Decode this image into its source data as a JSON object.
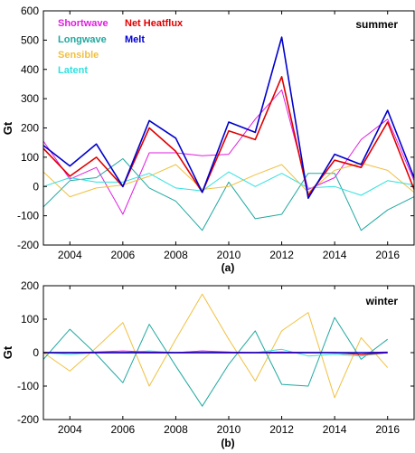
{
  "chart_data": [
    {
      "type": "line",
      "panel_label": "(a)",
      "annotation": "summer",
      "ylabel": "Gt",
      "xlim": [
        2003,
        2017
      ],
      "ylim": [
        -200,
        600
      ],
      "xticks": [
        "2004",
        "2006",
        "2008",
        "2010",
        "2012",
        "2014",
        "2016"
      ],
      "yticks": [
        "-200",
        "-100",
        "0",
        "100",
        "200",
        "300",
        "400",
        "500",
        "600"
      ],
      "x": [
        2003,
        2004,
        2005,
        2006,
        2007,
        2008,
        2009,
        2010,
        2011,
        2012,
        2013,
        2014,
        2015,
        2016,
        2017
      ],
      "legend": [
        {
          "label": "Shortwave",
          "color": "#e01ee0"
        },
        {
          "label": "Net Heatflux",
          "color": "#e00000"
        },
        {
          "label": "Longwave",
          "color": "#20a8a0"
        },
        {
          "label": "Melt",
          "color": "#0000cc"
        },
        {
          "label": "Sensible",
          "color": "#f0c040"
        },
        {
          "label": "Latent",
          "color": "#30e0e0"
        }
      ],
      "series": [
        {
          "name": "Shortwave",
          "color": "#e01ee0",
          "width": 1,
          "values": [
            155,
            25,
            65,
            -95,
            115,
            115,
            105,
            110,
            230,
            330,
            -10,
            30,
            160,
            230,
            20
          ]
        },
        {
          "name": "Longwave",
          "color": "#20a8a0",
          "width": 1,
          "values": [
            -70,
            20,
            30,
            95,
            -5,
            -50,
            -150,
            15,
            -110,
            -95,
            45,
            45,
            -150,
            -80,
            -35
          ]
        },
        {
          "name": "Sensible",
          "color": "#f0c040",
          "width": 1,
          "values": [
            50,
            -35,
            -5,
            5,
            35,
            75,
            -10,
            0,
            40,
            75,
            -20,
            55,
            80,
            55,
            -20
          ]
        },
        {
          "name": "Latent",
          "color": "#30e0e0",
          "width": 1,
          "values": [
            0,
            30,
            15,
            15,
            45,
            -5,
            -15,
            50,
            0,
            45,
            -5,
            0,
            -30,
            20,
            5
          ]
        },
        {
          "name": "Net Heatflux",
          "color": "#e00000",
          "width": 1.6,
          "values": [
            130,
            35,
            100,
            0,
            200,
            120,
            -20,
            190,
            160,
            375,
            -30,
            90,
            65,
            220,
            -10
          ]
        },
        {
          "name": "Melt",
          "color": "#0000cc",
          "width": 1.6,
          "values": [
            140,
            70,
            145,
            0,
            225,
            165,
            -20,
            220,
            185,
            510,
            -40,
            110,
            75,
            260,
            30
          ]
        }
      ]
    },
    {
      "type": "line",
      "panel_label": "(b)",
      "annotation": "winter",
      "ylabel": "Gt",
      "xlim": [
        2003,
        2017
      ],
      "ylim": [
        -200,
        200
      ],
      "xticks": [
        "2004",
        "2006",
        "2008",
        "2010",
        "2012",
        "2014",
        "2016"
      ],
      "yticks": [
        "-200",
        "-100",
        "0",
        "100",
        "200"
      ],
      "x": [
        2003,
        2004,
        2005,
        2006,
        2007,
        2008,
        2009,
        2010,
        2011,
        2012,
        2013,
        2014,
        2015,
        2016
      ],
      "series": [
        {
          "name": "Sensible",
          "color": "#f0c040",
          "width": 1,
          "values": [
            0,
            -55,
            15,
            90,
            -100,
            40,
            175,
            40,
            -85,
            65,
            120,
            -135,
            45,
            -45
          ]
        },
        {
          "name": "Longwave",
          "color": "#20a8a0",
          "width": 1,
          "values": [
            -20,
            70,
            -5,
            -90,
            85,
            -40,
            -160,
            -35,
            65,
            -95,
            -100,
            105,
            -20,
            40
          ]
        },
        {
          "name": "Latent",
          "color": "#30e0e0",
          "width": 1,
          "values": [
            0,
            -5,
            0,
            0,
            5,
            0,
            5,
            0,
            0,
            10,
            -10,
            -5,
            -10,
            0
          ]
        },
        {
          "name": "Shortwave",
          "color": "#e01ee0",
          "width": 1,
          "values": [
            0,
            0,
            2,
            5,
            2,
            0,
            5,
            2,
            0,
            2,
            0,
            0,
            0,
            2
          ]
        },
        {
          "name": "Net Heatflux",
          "color": "#e00000",
          "width": 1.4,
          "values": [
            0,
            0,
            0,
            0,
            0,
            0,
            0,
            0,
            0,
            0,
            0,
            0,
            -5,
            0
          ]
        },
        {
          "name": "Melt",
          "color": "#0000cc",
          "width": 1.4,
          "values": [
            0,
            0,
            0,
            0,
            0,
            0,
            0,
            0,
            0,
            0,
            0,
            0,
            0,
            0
          ]
        }
      ]
    }
  ]
}
